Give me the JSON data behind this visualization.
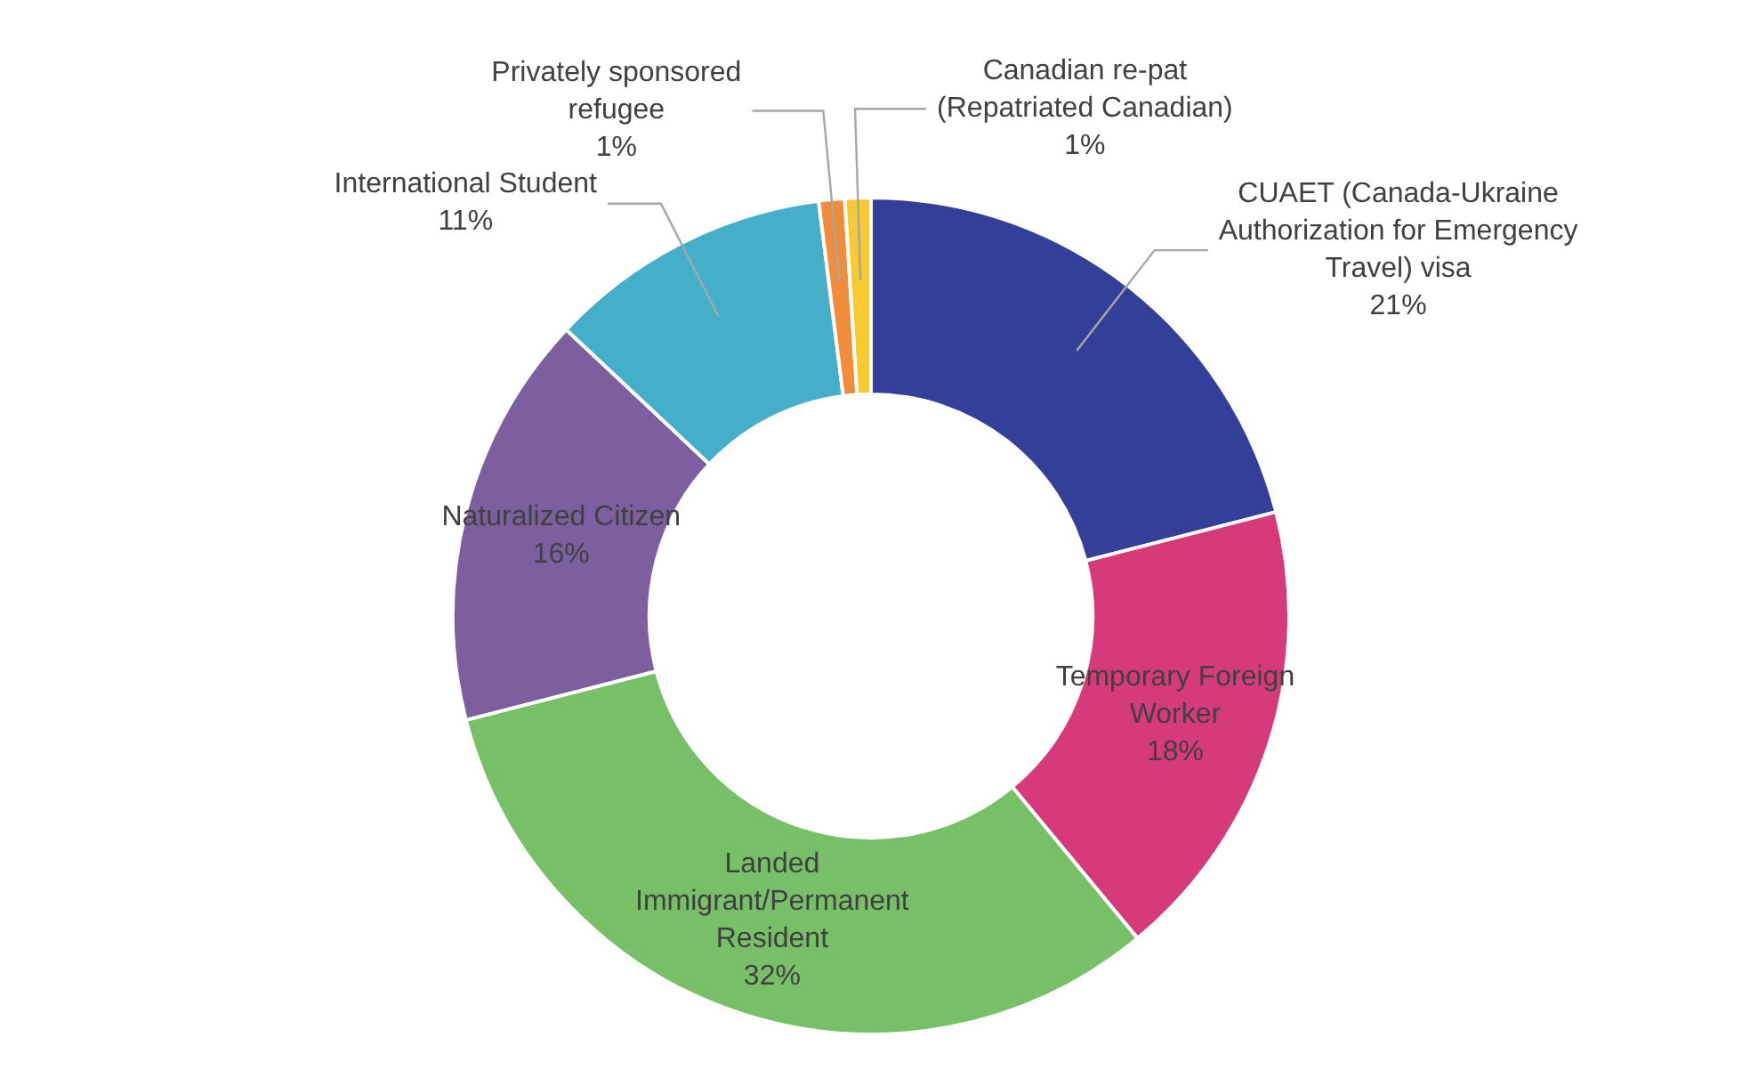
{
  "chart_data": {
    "type": "donut",
    "categories": [
      "CUAET (Canada-Ukraine Authorization for Emergency Travel) visa",
      "Temporary Foreign Worker",
      "Landed Immigrant/Permanent Resident",
      "Naturalized Citizen",
      "International Student",
      "Privately sponsored refugee",
      "Canadian re-pat (Repatriated Canadian)"
    ],
    "values": [
      21,
      18,
      32,
      16,
      11,
      1,
      1
    ],
    "value_labels": [
      "21%",
      "18%",
      "32%",
      "16%",
      "11%",
      "1%",
      "1%"
    ],
    "colors": [
      "#333f99",
      "#d63a7a",
      "#77c067",
      "#7d5fa0",
      "#45aec8",
      "#f08c3a",
      "#f7c933"
    ],
    "legend": false
  }
}
